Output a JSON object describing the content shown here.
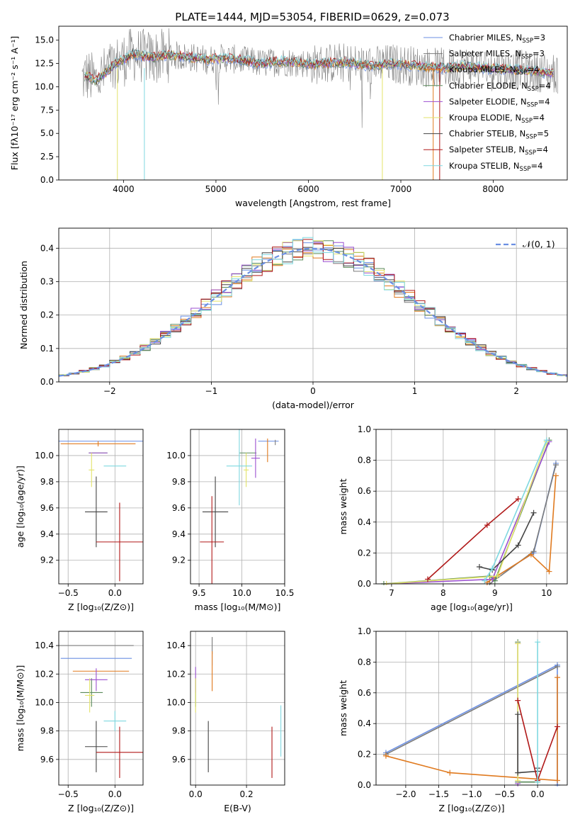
{
  "figure": {
    "title": "PLATE=1444, MJD=53054, FIBERID=0629, z=0.073"
  },
  "legend": {
    "spectrum": [
      {
        "label": "Chabrier MILES, N",
        "sub": "SSP",
        "suffix": "=3",
        "color": "#6b8fe3"
      },
      {
        "label": "Salpeter MILES, N",
        "sub": "SSP",
        "suffix": "=3",
        "color": "#7b7b7b"
      },
      {
        "label": "Kroupa MILES, N",
        "sub": "SSP",
        "suffix": "=4",
        "color": "#e07a1f"
      },
      {
        "label": "Chabrier ELODIE, N",
        "sub": "SSP",
        "suffix": "=4",
        "color": "#5a8a5a"
      },
      {
        "label": "Salpeter ELODIE, N",
        "sub": "SSP",
        "suffix": "=4",
        "color": "#9b4fd0"
      },
      {
        "label": "Kroupa ELODIE, N",
        "sub": "SSP",
        "suffix": "=4",
        "color": "#e3e36a"
      },
      {
        "label": "Chabrier STELIB, N",
        "sub": "SSP",
        "suffix": "=5",
        "color": "#444444"
      },
      {
        "label": "Salpeter STELIB, N",
        "sub": "SSP",
        "suffix": "=4",
        "color": "#b01818"
      },
      {
        "label": "Kroupa STELIB, N",
        "sub": "SSP",
        "suffix": "=4",
        "color": "#7fd8e0"
      }
    ],
    "gaussian": "𝒩(0, 1)"
  },
  "chart_data": [
    {
      "type": "line",
      "panel": "spectrum",
      "xlabel": "wavelength [Angstrom, rest frame]",
      "ylabel": "Flux [fλ10⁻¹⁷ erg cm⁻² s⁻¹ A⁻¹]",
      "xlim": [
        3300,
        8800
      ],
      "ylim": [
        0,
        16.5
      ],
      "xticks": [
        "4000",
        "5000",
        "6000",
        "7000",
        "8000"
      ],
      "yticks": [
        "0.0",
        "2.5",
        "5.0",
        "7.5",
        "10.0",
        "12.5",
        "15.0"
      ],
      "x": [
        3550,
        3600,
        3700,
        3800,
        3900,
        4000,
        4100,
        4200,
        4300,
        4500,
        4700,
        4900,
        5100,
        5300,
        5500,
        5700,
        5900,
        6100,
        6300,
        6500,
        6700,
        6900,
        7100,
        7300,
        7500,
        7700,
        7900,
        8100,
        8300,
        8500,
        8700
      ],
      "model_y": [
        10.8,
        11.2,
        10.6,
        11.5,
        12.4,
        12.9,
        13.5,
        13.3,
        13.1,
        13.4,
        13.2,
        12.9,
        13.1,
        12.8,
        12.5,
        12.7,
        12.6,
        12.4,
        12.6,
        12.5,
        12.2,
        12.5,
        12.3,
        12.1,
        12.0,
        12.2,
        12.0,
        11.9,
        11.8,
        11.6,
        11.4
      ],
      "grid": false,
      "legend": "right"
    },
    {
      "type": "bar",
      "panel": "residual-histograms",
      "xlabel": "(data-model)/error",
      "ylabel": "Normed distribution",
      "xlim": [
        -2.5,
        2.5
      ],
      "ylim": [
        0,
        0.46
      ],
      "xticks": [
        "−2",
        "−1",
        "0",
        "1",
        "2"
      ],
      "yticks": [
        "0.0",
        "0.1",
        "0.2",
        "0.3",
        "0.4"
      ],
      "bin_width": 0.1,
      "grid": true,
      "legend": "top-right"
    },
    {
      "type": "scatter",
      "panel": "age-vs-Z",
      "xlabel": "Z [log₁₀(Z/Z⊙)]",
      "ylabel": "age  [log₁₀(age/yr)]",
      "xlim": [
        -0.6,
        0.3
      ],
      "ylim": [
        9.02,
        10.2
      ],
      "xticks": [
        "−0.5",
        "0.0"
      ],
      "yticks": [
        "9.2",
        "9.4",
        "9.6",
        "9.8",
        "10.0"
      ],
      "points": [
        {
          "series": "Chabrier MILES",
          "x": -0.15,
          "xerr": 0.45,
          "y": 10.11,
          "yerr": 0.0
        },
        {
          "series": "Salpeter MILES",
          "x": 0.18,
          "xerr": 0.0,
          "y": 10.1,
          "yerr": 0.0
        },
        {
          "series": "Kroupa MILES",
          "x": -0.18,
          "xerr": 0.4,
          "y": 10.09,
          "yerr": 0.02
        },
        {
          "series": "Chabrier ELODIE",
          "x": -0.18,
          "xerr": 0.1,
          "y": 10.02,
          "yerr": 0.0
        },
        {
          "series": "Salpeter ELODIE",
          "x": -0.18,
          "xerr": 0.1,
          "y": 10.02,
          "yerr": 0.0
        },
        {
          "series": "Kroupa ELODIE",
          "x": -0.25,
          "xerr": 0.03,
          "y": 9.89,
          "yerr": 0.13
        },
        {
          "series": "Chabrier STELIB",
          "x": -0.2,
          "xerr": 0.12,
          "y": 9.57,
          "yerr": 0.27
        },
        {
          "series": "Salpeter STELIB",
          "x": 0.05,
          "xerr": 0.25,
          "y": 9.34,
          "yerr": 0.3
        },
        {
          "series": "Kroupa STELIB",
          "x": 0.0,
          "xerr": 0.12,
          "y": 9.92,
          "yerr": 0.0
        }
      ],
      "grid": true
    },
    {
      "type": "scatter",
      "panel": "age-vs-mass",
      "xlabel": "mass [log₁₀(M/M⊙)]",
      "ylabel": "",
      "xlim": [
        9.4,
        10.5
      ],
      "ylim": [
        9.02,
        10.2
      ],
      "xticks": [
        "9.5",
        "10.0",
        "10.5"
      ],
      "yticks": [
        "9.2",
        "9.4",
        "9.6",
        "9.8",
        "10.0"
      ],
      "points": [
        {
          "series": "Chabrier MILES",
          "x": 10.31,
          "xerr": 0.12,
          "y": 10.11,
          "yerr": 0.0
        },
        {
          "series": "Salpeter MILES",
          "x": 10.39,
          "xerr": 0.0,
          "y": 10.1,
          "yerr": 0.02
        },
        {
          "series": "Kroupa MILES",
          "x": 10.3,
          "xerr": 0.0,
          "y": 10.04,
          "yerr": 0.09
        },
        {
          "series": "Chabrier ELODIE",
          "x": 10.07,
          "xerr": 0.1,
          "y": 10.02,
          "yerr": 0.0
        },
        {
          "series": "Salpeter ELODIE",
          "x": 10.16,
          "xerr": 0.05,
          "y": 9.98,
          "yerr": 0.15
        },
        {
          "series": "Kroupa ELODIE",
          "x": 10.05,
          "xerr": 0.03,
          "y": 9.89,
          "yerr": 0.13
        },
        {
          "series": "Chabrier STELIB",
          "x": 9.69,
          "xerr": 0.15,
          "y": 9.57,
          "yerr": 0.27
        },
        {
          "series": "Salpeter STELIB",
          "x": 9.65,
          "xerr": 0.14,
          "y": 9.34,
          "yerr": 0.35
        },
        {
          "series": "Kroupa STELIB",
          "x": 9.97,
          "xerr": 0.15,
          "y": 9.92,
          "yerr": 0.3
        }
      ],
      "grid": true
    },
    {
      "type": "line",
      "panel": "mass-weight-vs-age",
      "xlabel": "age  [log₁₀(age/yr)]",
      "ylabel": "mass weight",
      "xlim": [
        6.7,
        10.4
      ],
      "ylim": [
        0,
        1.0
      ],
      "xticks": [
        "7",
        "8",
        "9",
        "10"
      ],
      "yticks": [
        "0.0",
        "0.2",
        "0.4",
        "0.6",
        "0.8",
        "1.0"
      ],
      "series": [
        {
          "name": "Chabrier MILES",
          "x": [
            8.85,
            9.75,
            10.18
          ],
          "y": [
            0.01,
            0.2,
            0.78
          ]
        },
        {
          "name": "Salpeter MILES",
          "x": [
            8.9,
            9.75,
            10.18
          ],
          "y": [
            0.0,
            0.21,
            0.77
          ]
        },
        {
          "name": "Kroupa MILES",
          "x": [
            8.85,
            9.7,
            10.05,
            10.18
          ],
          "y": [
            0.01,
            0.19,
            0.08,
            0.7
          ]
        },
        {
          "name": "Chabrier ELODIE",
          "x": [
            6.85,
            8.9,
            9.0,
            10.05
          ],
          "y": [
            0.0,
            0.05,
            0.02,
            0.93
          ]
        },
        {
          "name": "Salpeter ELODIE",
          "x": [
            6.9,
            8.95,
            10.05
          ],
          "y": [
            0.0,
            0.03,
            0.92
          ]
        },
        {
          "name": "Kroupa ELODIE",
          "x": [
            6.9,
            9.05,
            10.0
          ],
          "y": [
            0.0,
            0.05,
            0.92
          ]
        },
        {
          "name": "Chabrier STELIB",
          "x": [
            8.7,
            8.95,
            9.45,
            9.75
          ],
          "y": [
            0.11,
            0.09,
            0.25,
            0.46
          ]
        },
        {
          "name": "Salpeter STELIB",
          "x": [
            7.7,
            8.85,
            9.45
          ],
          "y": [
            0.03,
            0.38,
            0.55
          ]
        },
        {
          "name": "Kroupa STELIB",
          "x": [
            8.8,
            8.95,
            10.0
          ],
          "y": [
            0.02,
            0.1,
            0.93
          ]
        }
      ],
      "grid": true
    },
    {
      "type": "scatter",
      "panel": "mass-vs-Z",
      "xlabel": "Z [log₁₀(Z/Z⊙)]",
      "ylabel": "mass [log₁₀(M/M⊙)]",
      "xlim": [
        -0.6,
        0.3
      ],
      "ylim": [
        9.42,
        10.5
      ],
      "xticks": [
        "−0.5",
        "0.0"
      ],
      "yticks": [
        "9.6",
        "9.8",
        "10.0",
        "10.2",
        "10.4"
      ],
      "points": [
        {
          "series": "Chabrier MILES",
          "x": -0.2,
          "xerr": 0.38,
          "y": 10.31,
          "yerr": 0.0
        },
        {
          "series": "Salpeter MILES",
          "x": -0.2,
          "xerr": 0.4,
          "y": 10.4,
          "yerr": 0.0
        },
        {
          "series": "Kroupa MILES",
          "x": -0.15,
          "xerr": 0.3,
          "y": 10.22,
          "yerr": 0.0
        },
        {
          "series": "Chabrier ELODIE",
          "x": -0.25,
          "xerr": 0.12,
          "y": 10.07,
          "yerr": 0.1
        },
        {
          "series": "Salpeter ELODIE",
          "x": -0.2,
          "xerr": 0.12,
          "y": 10.16,
          "yerr": 0.08
        },
        {
          "series": "Kroupa ELODIE",
          "x": -0.27,
          "xerr": 0.05,
          "y": 10.05,
          "yerr": 0.12
        },
        {
          "series": "Chabrier STELIB",
          "x": -0.2,
          "xerr": 0.12,
          "y": 9.69,
          "yerr": 0.18
        },
        {
          "series": "Salpeter STELIB",
          "x": 0.05,
          "xerr": 0.25,
          "y": 9.65,
          "yerr": 0.18
        },
        {
          "series": "Kroupa STELIB",
          "x": 0.0,
          "xerr": 0.12,
          "y": 9.87,
          "yerr": 0.07
        }
      ],
      "grid": true
    },
    {
      "type": "scatter",
      "panel": "mass-vs-EBV",
      "xlabel": "E(B-V)",
      "ylabel": "",
      "xlim": [
        -0.02,
        0.35
      ],
      "ylim": [
        9.42,
        10.5
      ],
      "xticks": [
        "0.0",
        "0.2"
      ],
      "yticks": [
        "9.6",
        "9.8",
        "10.0",
        "10.2",
        "10.4"
      ],
      "points": [
        {
          "series": "Chabrier MILES",
          "x": 0.065,
          "y": 10.31,
          "yerr": 0.05
        },
        {
          "series": "Salpeter MILES",
          "x": 0.065,
          "y": 10.4,
          "yerr": 0.06
        },
        {
          "series": "Kroupa MILES",
          "x": 0.065,
          "y": 10.22,
          "yerr": 0.14
        },
        {
          "series": "Chabrier ELODIE",
          "x": 0.0,
          "y": 10.07,
          "yerr": 0.1
        },
        {
          "series": "Salpeter ELODIE",
          "x": 0.0,
          "y": 10.16,
          "yerr": 0.09
        },
        {
          "series": "Kroupa ELODIE",
          "x": 0.0,
          "y": 10.05,
          "yerr": 0.12
        },
        {
          "series": "Chabrier STELIB",
          "x": 0.05,
          "y": 9.69,
          "yerr": 0.18
        },
        {
          "series": "Salpeter STELIB",
          "x": 0.3,
          "y": 9.65,
          "yerr": 0.18
        },
        {
          "series": "Kroupa STELIB",
          "x": 0.335,
          "y": 9.8,
          "yerr": 0.18
        }
      ],
      "grid": true
    },
    {
      "type": "line",
      "panel": "mass-weight-vs-Z",
      "xlabel": "Z [log₁₀(Z/Z⊙)]",
      "ylabel": "mass weight",
      "xlim": [
        -2.45,
        0.45
      ],
      "ylim": [
        0,
        1.0
      ],
      "xticks": [
        "−2.0",
        "−1.5",
        "−1.0",
        "−0.5",
        "0.0"
      ],
      "yticks": [
        "0.0",
        "0.2",
        "0.4",
        "0.6",
        "0.8",
        "1.0"
      ],
      "series": [
        {
          "name": "Chabrier MILES",
          "x": [
            -2.3,
            0.3,
            0.3
          ],
          "y": [
            0.21,
            0.78,
            0.0
          ]
        },
        {
          "name": "Salpeter MILES",
          "x": [
            -2.3,
            0.3
          ],
          "y": [
            0.2,
            0.77
          ]
        },
        {
          "name": "Kroupa MILES",
          "x": [
            -2.3,
            -1.33,
            0.3,
            0.3
          ],
          "y": [
            0.19,
            0.08,
            0.03,
            0.7
          ]
        },
        {
          "name": "Chabrier ELODIE",
          "x": [
            -0.3,
            -0.3,
            0.0
          ],
          "y": [
            0.93,
            0.02,
            0.02
          ]
        },
        {
          "name": "Salpeter ELODIE",
          "x": [
            -0.3,
            -0.3
          ],
          "y": [
            0.92,
            0.01
          ]
        },
        {
          "name": "Kroupa ELODIE",
          "x": [
            -0.3,
            -0.3
          ],
          "y": [
            0.92,
            0.03
          ]
        },
        {
          "name": "Chabrier STELIB",
          "x": [
            -0.3,
            -0.3,
            0.0,
            0.0
          ],
          "y": [
            0.46,
            0.08,
            0.09,
            0.11
          ]
        },
        {
          "name": "Salpeter STELIB",
          "x": [
            -0.3,
            0.0,
            0.3
          ],
          "y": [
            0.55,
            0.03,
            0.38
          ]
        },
        {
          "name": "Kroupa STELIB",
          "x": [
            0.0,
            0.0
          ],
          "y": [
            0.93,
            0.02
          ]
        }
      ],
      "grid": true
    }
  ]
}
